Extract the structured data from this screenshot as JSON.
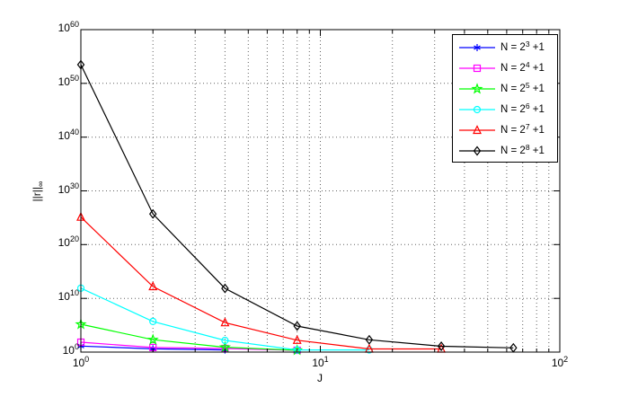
{
  "figure": {
    "background": "#ffffff",
    "axes_box_color": "#000000",
    "grid_color": "#606060"
  },
  "chart_data": {
    "type": "line",
    "x_scale": "log",
    "y_scale": "log",
    "title": "",
    "xlabel": "J",
    "ylabel_base": "||r||",
    "ylabel_sub": "∞",
    "xlim": [
      1,
      100
    ],
    "ylim": [
      1,
      1e+60
    ],
    "x_tick_labels": [
      "10^0",
      "10^1",
      "10^2"
    ],
    "y_tick_labels": [
      "10^0",
      "10^10",
      "10^20",
      "10^30",
      "10^40",
      "10^50",
      "10^60"
    ],
    "grid": "on",
    "legend_position": "top-right",
    "series": [
      {
        "label": "N = 2^3 +1",
        "color": "#0000ff",
        "marker": "asterisk",
        "x": [
          1,
          2,
          4
        ],
        "y": [
          13,
          4,
          2.5
        ]
      },
      {
        "label": "N = 2^4 +1",
        "color": "#ff00ff",
        "marker": "square",
        "x": [
          1,
          2,
          4,
          8
        ],
        "y": [
          70,
          7,
          4.7,
          2.2
        ]
      },
      {
        "label": "N = 2^5 +1",
        "color": "#00ff00",
        "marker": "pentagram",
        "x": [
          1,
          2,
          4,
          8
        ],
        "y": [
          150000.0,
          200,
          8,
          2.2
        ]
      },
      {
        "label": "N = 2^6 +1",
        "color": "#00ffff",
        "marker": "circle",
        "x": [
          1,
          2,
          4,
          8,
          16
        ],
        "y": [
          800000000000.0,
          500000.0,
          150,
          2.5,
          2.5
        ]
      },
      {
        "label": "N = 2^7 +1",
        "color": "#ff0000",
        "marker": "triangle-up",
        "x": [
          1,
          2,
          4,
          8,
          16,
          32
        ],
        "y": [
          1.3e+25,
          1600000000000.0,
          300000.0,
          160,
          3.8,
          3.8
        ]
      },
      {
        "label": "N = 2^8 +1",
        "color": "#000000",
        "marker": "diamond",
        "x": [
          1,
          2,
          4,
          8,
          16,
          32,
          64
        ],
        "y": [
          3e+53,
          5e+25,
          700000000000.0,
          70000.0,
          195,
          12,
          6
        ]
      }
    ]
  }
}
